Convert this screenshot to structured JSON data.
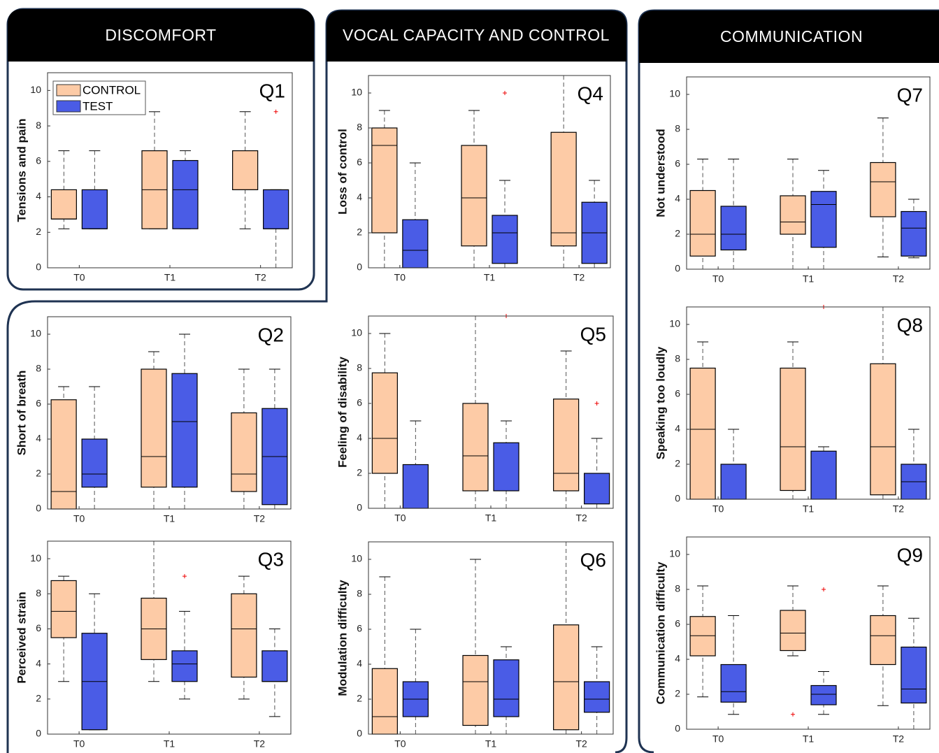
{
  "sections": [
    {
      "title": "DISCOMFORT"
    },
    {
      "title": "VOCAL CAPACITY AND CONTROL"
    },
    {
      "title": "COMMUNICATION"
    }
  ],
  "chart_data": [
    {
      "type": "box",
      "title": "Q1",
      "ylabel": "Tensions and pain",
      "categories": [
        "T0",
        "T1",
        "T2"
      ],
      "ylim": [
        0,
        11
      ],
      "yticks": [
        0,
        2,
        4,
        6,
        8,
        10
      ],
      "legend": "top-left",
      "series": [
        {
          "name": "CONTROL",
          "color": "#fdcba6",
          "boxes": [
            {
              "min": 2.2,
              "q1": 2.75,
              "median": 2.75,
              "q3": 4.4,
              "max": 6.6
            },
            {
              "min": 2.2,
              "q1": 2.2,
              "median": 4.4,
              "q3": 6.6,
              "max": 8.8
            },
            {
              "min": 2.2,
              "q1": 4.4,
              "median": 4.4,
              "q3": 6.6,
              "max": 8.8
            }
          ]
        },
        {
          "name": "TEST",
          "color": "#4a5ce6",
          "boxes": [
            {
              "min": 2.2,
              "q1": 2.2,
              "median": 2.2,
              "q3": 4.4,
              "max": 6.6
            },
            {
              "min": 2.2,
              "q1": 2.2,
              "median": 4.4,
              "q3": 6.05,
              "max": 6.6
            },
            {
              "min": 0,
              "q1": 2.2,
              "median": 2.2,
              "q3": 4.4,
              "max": 4.4,
              "outliers": [
                8.8
              ]
            }
          ]
        }
      ]
    },
    {
      "type": "box",
      "title": "Q2",
      "ylabel": "Short of breath",
      "categories": [
        "T0",
        "T1",
        "T2"
      ],
      "ylim": [
        0,
        11
      ],
      "yticks": [
        0,
        2,
        4,
        6,
        8,
        10
      ],
      "series": [
        {
          "color": "#fdcba6",
          "boxes": [
            {
              "min": 0,
              "q1": 0,
              "median": 1,
              "q3": 6.25,
              "max": 7
            },
            {
              "min": 0,
              "q1": 1.25,
              "median": 3,
              "q3": 8,
              "max": 9
            },
            {
              "min": 0,
              "q1": 1,
              "median": 2,
              "q3": 5.5,
              "max": 8
            }
          ]
        },
        {
          "color": "#4a5ce6",
          "boxes": [
            {
              "min": 0,
              "q1": 1.25,
              "median": 2,
              "q3": 4,
              "max": 7
            },
            {
              "min": 0,
              "q1": 1.25,
              "median": 5,
              "q3": 7.75,
              "max": 10
            },
            {
              "min": 0,
              "q1": 0.25,
              "median": 3,
              "q3": 5.75,
              "max": 8
            }
          ]
        }
      ]
    },
    {
      "type": "box",
      "title": "Q3",
      "ylabel": "Perceived strain",
      "categories": [
        "T0",
        "T1",
        "T2"
      ],
      "ylim": [
        0,
        11
      ],
      "yticks": [
        0,
        2,
        4,
        6,
        8,
        10
      ],
      "series": [
        {
          "color": "#fdcba6",
          "boxes": [
            {
              "min": 3,
              "q1": 5.5,
              "median": 7,
              "q3": 8.75,
              "max": 9
            },
            {
              "min": 3,
              "q1": 4.25,
              "median": 6,
              "q3": 7.75,
              "max": 11
            },
            {
              "min": 2,
              "q1": 3.25,
              "median": 6,
              "q3": 8,
              "max": 9
            }
          ]
        },
        {
          "color": "#4a5ce6",
          "boxes": [
            {
              "min": 0.25,
              "q1": 0.25,
              "median": 3,
              "q3": 5.75,
              "max": 8
            },
            {
              "min": 2,
              "q1": 3,
              "median": 4,
              "q3": 4.75,
              "max": 7,
              "outliers": [
                9
              ]
            },
            {
              "min": 1,
              "q1": 3,
              "median": 3,
              "q3": 4.75,
              "max": 6
            }
          ]
        }
      ]
    },
    {
      "type": "box",
      "title": "Q4",
      "ylabel": "Loss of control",
      "categories": [
        "T0",
        "T1",
        "T2"
      ],
      "ylim": [
        0,
        11
      ],
      "yticks": [
        0,
        2,
        4,
        6,
        8,
        10
      ],
      "series": [
        {
          "color": "#fdcba6",
          "boxes": [
            {
              "min": 0,
              "q1": 2,
              "median": 7,
              "q3": 8,
              "max": 9
            },
            {
              "min": 0,
              "q1": 1.25,
              "median": 4,
              "q3": 7,
              "max": 9
            },
            {
              "min": 0,
              "q1": 1.25,
              "median": 2,
              "q3": 7.75,
              "max": 11
            }
          ]
        },
        {
          "color": "#4a5ce6",
          "boxes": [
            {
              "min": 0,
              "q1": 0,
              "median": 1,
              "q3": 2.75,
              "max": 6
            },
            {
              "min": 0,
              "q1": 0.25,
              "median": 2,
              "q3": 3,
              "max": 5,
              "outliers": [
                10
              ]
            },
            {
              "min": 0,
              "q1": 0.25,
              "median": 2,
              "q3": 3.75,
              "max": 5
            }
          ]
        }
      ]
    },
    {
      "type": "box",
      "title": "Q5",
      "ylabel": "Feeling of disability",
      "categories": [
        "T0",
        "T1",
        "T2"
      ],
      "ylim": [
        0,
        11
      ],
      "yticks": [
        0,
        2,
        4,
        6,
        8,
        10
      ],
      "series": [
        {
          "color": "#fdcba6",
          "boxes": [
            {
              "min": 0,
              "q1": 2,
              "median": 4,
              "q3": 7.75,
              "max": 10
            },
            {
              "min": 0,
              "q1": 1,
              "median": 3,
              "q3": 6,
              "max": 11
            },
            {
              "min": 0,
              "q1": 1,
              "median": 2,
              "q3": 6.25,
              "max": 9
            }
          ]
        },
        {
          "color": "#4a5ce6",
          "boxes": [
            {
              "min": 0,
              "q1": 0,
              "median": 0,
              "q3": 2.5,
              "max": 5
            },
            {
              "min": 0,
              "q1": 1,
              "median": 1,
              "q3": 3.75,
              "max": 5,
              "outliers": [
                11
              ]
            },
            {
              "min": 0,
              "q1": 0.25,
              "median": 2,
              "q3": 2,
              "max": 4,
              "outliers": [
                6
              ]
            }
          ]
        }
      ]
    },
    {
      "type": "box",
      "title": "Q6",
      "ylabel": "Modulation difficulty",
      "categories": [
        "T0",
        "T1",
        "T2"
      ],
      "ylim": [
        0,
        11
      ],
      "yticks": [
        0,
        2,
        4,
        6,
        8,
        10
      ],
      "series": [
        {
          "color": "#fdcba6",
          "boxes": [
            {
              "min": 0,
              "q1": 0,
              "median": 1,
              "q3": 3.75,
              "max": 9
            },
            {
              "min": 0,
              "q1": 0.5,
              "median": 3,
              "q3": 4.5,
              "max": 10
            },
            {
              "min": 0,
              "q1": 0.25,
              "median": 3,
              "q3": 6.25,
              "max": 11
            }
          ]
        },
        {
          "color": "#4a5ce6",
          "boxes": [
            {
              "min": 0,
              "q1": 1,
              "median": 2,
              "q3": 3,
              "max": 6
            },
            {
              "min": 0,
              "q1": 1,
              "median": 2,
              "q3": 4.25,
              "max": 5
            },
            {
              "min": 0,
              "q1": 1.25,
              "median": 2,
              "q3": 3,
              "max": 5
            }
          ]
        }
      ]
    },
    {
      "type": "box",
      "title": "Q7",
      "ylabel": "Not understood",
      "categories": [
        "T0",
        "T1",
        "T2"
      ],
      "ylim": [
        0,
        11
      ],
      "yticks": [
        0,
        2,
        4,
        6,
        8,
        10
      ],
      "series": [
        {
          "color": "#fdcba6",
          "boxes": [
            {
              "min": 0,
              "q1": 0.75,
              "median": 2,
              "q3": 4.5,
              "max": 6.3
            },
            {
              "min": 0,
              "q1": 2,
              "median": 2.7,
              "q3": 4.2,
              "max": 6.3
            },
            {
              "min": 0.7,
              "q1": 3,
              "median": 5,
              "q3": 6.1,
              "max": 8.65
            }
          ]
        },
        {
          "color": "#4a5ce6",
          "boxes": [
            {
              "min": 0,
              "q1": 1.1,
              "median": 2,
              "q3": 3.6,
              "max": 6.3
            },
            {
              "min": 0,
              "q1": 1.25,
              "median": 3.7,
              "q3": 4.45,
              "max": 5.65
            },
            {
              "min": 0.65,
              "q1": 0.75,
              "median": 2.35,
              "q3": 3.3,
              "max": 4
            }
          ]
        }
      ]
    },
    {
      "type": "box",
      "title": "Q8",
      "ylabel": "Speaking too loudly",
      "categories": [
        "T0",
        "T1",
        "T2"
      ],
      "ylim": [
        0,
        11
      ],
      "yticks": [
        0,
        2,
        4,
        6,
        8,
        10
      ],
      "series": [
        {
          "color": "#fdcba6",
          "boxes": [
            {
              "min": 0,
              "q1": 0,
              "median": 4,
              "q3": 7.5,
              "max": 9
            },
            {
              "min": 0,
              "q1": 0.5,
              "median": 3,
              "q3": 7.5,
              "max": 9
            },
            {
              "min": 0,
              "q1": 0.25,
              "median": 3,
              "q3": 7.75,
              "max": 11
            }
          ]
        },
        {
          "color": "#4a5ce6",
          "boxes": [
            {
              "min": 0,
              "q1": 0,
              "median": 0,
              "q3": 2,
              "max": 4
            },
            {
              "min": 0,
              "q1": 0,
              "median": 0,
              "q3": 2.75,
              "max": 3,
              "outliers": [
                11
              ]
            },
            {
              "min": 0,
              "q1": 0,
              "median": 1,
              "q3": 2,
              "max": 4
            }
          ]
        }
      ]
    },
    {
      "type": "box",
      "title": "Q9",
      "ylabel": "Communication difficulty",
      "categories": [
        "T0",
        "T1",
        "T2"
      ],
      "ylim": [
        0,
        11
      ],
      "yticks": [
        0,
        2,
        4,
        6,
        8,
        10
      ],
      "series": [
        {
          "color": "#fdcba6",
          "boxes": [
            {
              "min": 1.85,
              "q1": 4.2,
              "median": 5.35,
              "q3": 6.45,
              "max": 8.2
            },
            {
              "min": 4.2,
              "q1": 4.5,
              "median": 5.5,
              "q3": 6.8,
              "max": 8.2,
              "outliers": [
                0.85
              ]
            },
            {
              "min": 1.35,
              "q1": 3.7,
              "median": 5.35,
              "q3": 6.5,
              "max": 8.2
            }
          ]
        },
        {
          "color": "#4a5ce6",
          "boxes": [
            {
              "min": 0.85,
              "q1": 1.55,
              "median": 2.15,
              "q3": 3.7,
              "max": 6.5
            },
            {
              "min": 0.85,
              "q1": 1.4,
              "median": 2,
              "q3": 2.5,
              "max": 3.3,
              "outliers": [
                8
              ]
            },
            {
              "min": 0,
              "q1": 1.5,
              "median": 2.3,
              "q3": 4.7,
              "max": 6.35
            }
          ]
        }
      ]
    }
  ]
}
